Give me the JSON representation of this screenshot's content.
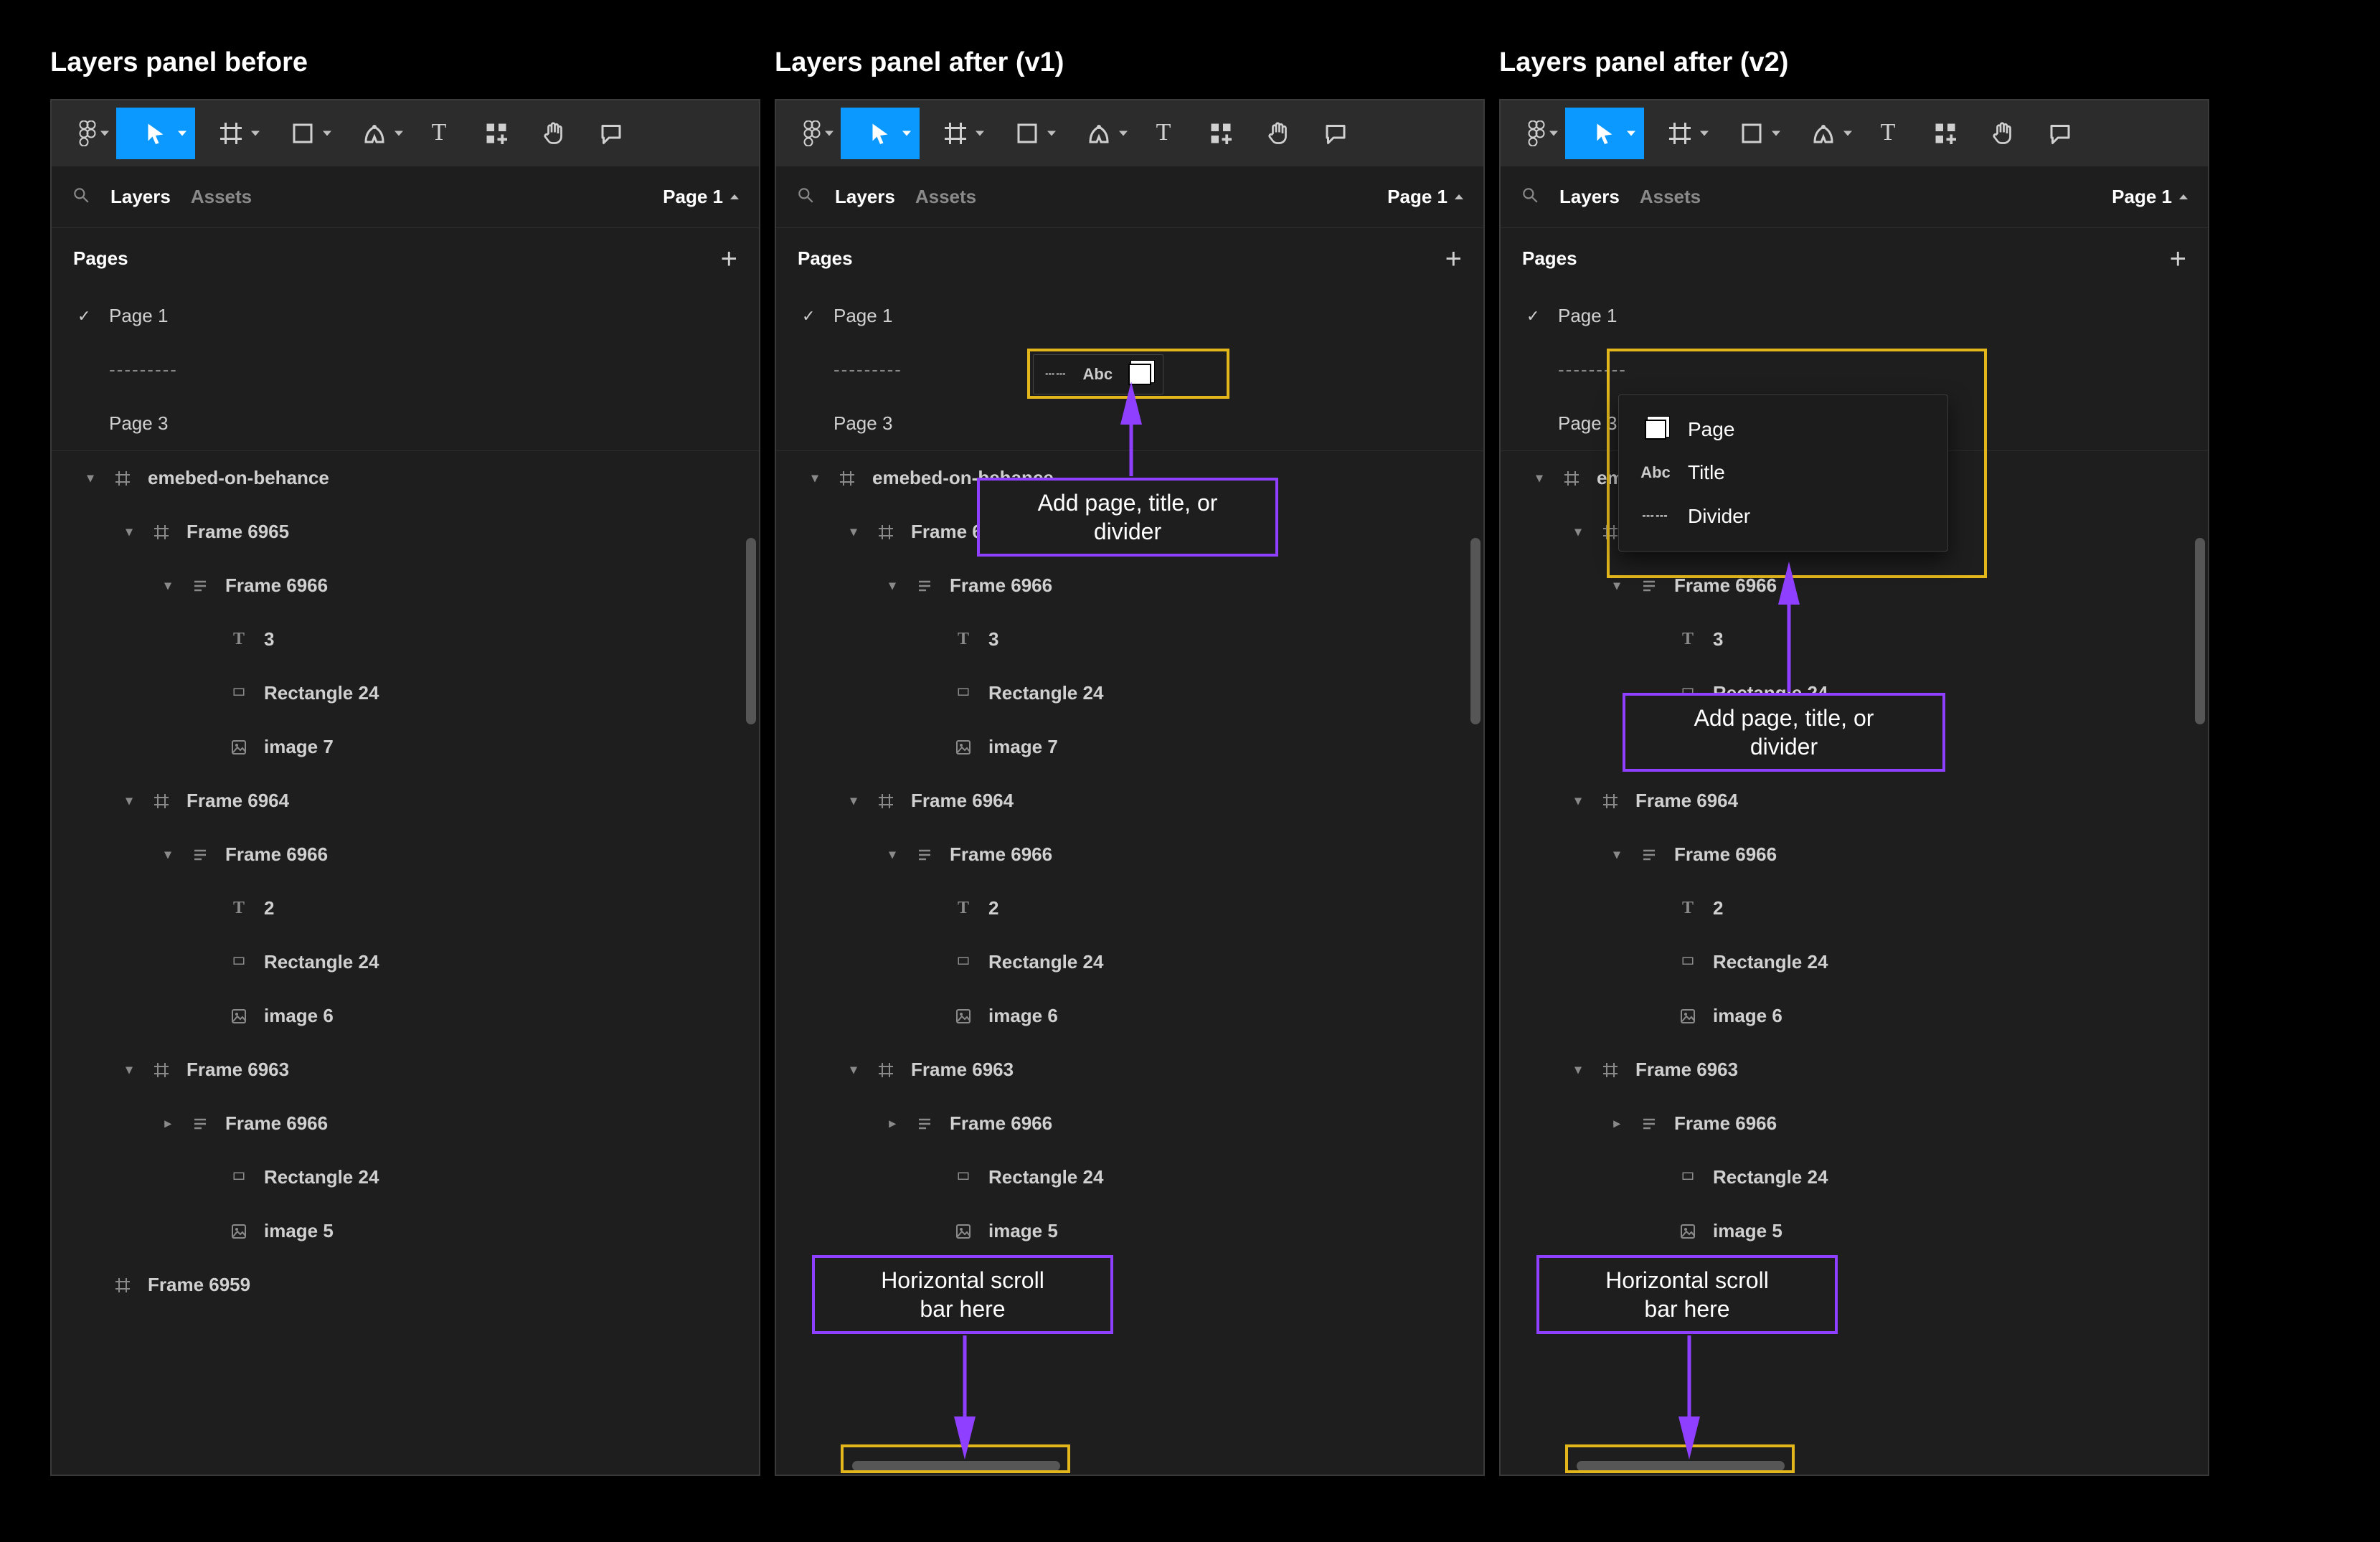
{
  "colors": {
    "bg_page": "#000000",
    "bg_panel": "#1e1e1e",
    "bg_toolbar": "#2c2c2c",
    "accent": "#0b99ff",
    "text_primary": "#ffffff",
    "text_muted": "#8a8a8a",
    "anno_border": "#8f3fff",
    "highlight_border": "#e3b71b",
    "scrollbar": "#565656"
  },
  "headings": [
    "Layers panel before",
    "Layers panel after (v1)",
    "Layers panel after (v2)"
  ],
  "toolbar_tools": [
    {
      "name": "figma-logo",
      "icon": "logo",
      "chevron": false
    },
    {
      "name": "move-tool",
      "icon": "cursor",
      "chevron": true,
      "active": true
    },
    {
      "name": "frame-tool",
      "icon": "frame",
      "chevron": true
    },
    {
      "name": "shape-tool",
      "icon": "square",
      "chevron": true
    },
    {
      "name": "pen-tool",
      "icon": "pen",
      "chevron": true
    },
    {
      "name": "text-tool",
      "icon": "text",
      "chevron": false
    },
    {
      "name": "resources-tool",
      "icon": "plus-grid",
      "chevron": false
    },
    {
      "name": "hand-tool",
      "icon": "hand",
      "chevron": false
    },
    {
      "name": "comment-tool",
      "icon": "comment",
      "chevron": false
    }
  ],
  "tabs": {
    "layers": "Layers",
    "assets": "Assets",
    "page_selector": "Page 1"
  },
  "pages_section": {
    "header": "Pages",
    "items": [
      {
        "label": "Page 1",
        "checked": true,
        "type": "page"
      },
      {
        "label": "---------",
        "type": "divider"
      },
      {
        "label": "Page 3",
        "type": "page"
      }
    ]
  },
  "tree": [
    {
      "depth": 0,
      "caret": "down",
      "icon": "frame",
      "label": "emebed-on-behance"
    },
    {
      "depth": 1,
      "caret": "down",
      "icon": "frame",
      "label": "Frame 6965"
    },
    {
      "depth": 2,
      "caret": "down",
      "icon": "autolayout",
      "label": "Frame 6966"
    },
    {
      "depth": 3,
      "caret": "",
      "icon": "text",
      "label": "3"
    },
    {
      "depth": 3,
      "caret": "",
      "icon": "rect",
      "label": "Rectangle 24"
    },
    {
      "depth": 3,
      "caret": "",
      "icon": "image",
      "label": "image 7"
    },
    {
      "depth": 1,
      "caret": "down",
      "icon": "frame",
      "label": "Frame 6964"
    },
    {
      "depth": 2,
      "caret": "down",
      "icon": "autolayout",
      "label": "Frame 6966"
    },
    {
      "depth": 3,
      "caret": "",
      "icon": "text",
      "label": "2"
    },
    {
      "depth": 3,
      "caret": "",
      "icon": "rect",
      "label": "Rectangle 24"
    },
    {
      "depth": 3,
      "caret": "",
      "icon": "image",
      "label": "image 6"
    },
    {
      "depth": 1,
      "caret": "down",
      "icon": "frame",
      "label": "Frame 6963"
    },
    {
      "depth": 2,
      "caret": "right",
      "icon": "autolayout",
      "label": "Frame 6966"
    },
    {
      "depth": 3,
      "caret": "",
      "icon": "rect",
      "label": "Rectangle 24"
    },
    {
      "depth": 3,
      "caret": "",
      "icon": "image",
      "label": "image 5"
    },
    {
      "depth": 0,
      "caret": "",
      "icon": "frame",
      "label": "Frame 6959"
    }
  ],
  "annotations": {
    "add_page": "Add page, title, or\ndivider",
    "hscroll": "Horizontal scroll\nbar here"
  },
  "mini_toolbar_label": "Abc",
  "popover": {
    "items": [
      {
        "icon": "page",
        "label": "Page"
      },
      {
        "icon": "abc",
        "label": "Title"
      },
      {
        "icon": "dots",
        "label": "Divider"
      }
    ]
  }
}
